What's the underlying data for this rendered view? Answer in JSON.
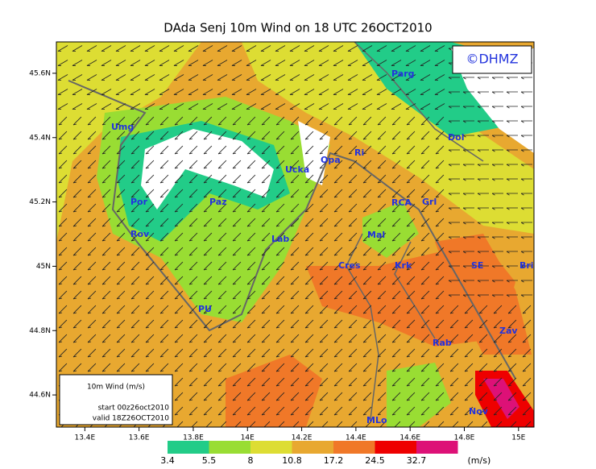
{
  "title": "DAda Senj 10m Wind on 18 UTC 26OCT2010",
  "copyright": "©DHMZ",
  "info": {
    "title": "10m Wind (m/s)",
    "start": "start 00z26oct2010",
    "valid": "valid 18Z26OCT2010"
  },
  "xlim": [
    13.295,
    15.057
  ],
  "ylim": [
    44.5,
    45.6975
  ],
  "xticks": [
    {
      "value": 13.4,
      "label": "13.4E"
    },
    {
      "value": 13.6,
      "label": "13.6E"
    },
    {
      "value": 13.8,
      "label": "13.8E"
    },
    {
      "value": 14,
      "label": "14E"
    },
    {
      "value": 14.2,
      "label": "14.2E"
    },
    {
      "value": 14.4,
      "label": "14.4E"
    },
    {
      "value": 14.6,
      "label": "14.6E"
    },
    {
      "value": 14.8,
      "label": "14.8E"
    },
    {
      "value": 15,
      "label": "15E"
    }
  ],
  "yticks": [
    {
      "value": 45.6,
      "label": "45.6N"
    },
    {
      "value": 45.4,
      "label": "45.4N"
    },
    {
      "value": 45.2,
      "label": "45.2N"
    },
    {
      "value": 45,
      "label": "45N"
    },
    {
      "value": 44.8,
      "label": "44.8N"
    },
    {
      "value": 44.6,
      "label": "44.6N"
    }
  ],
  "legend": {
    "unit": "(m/s)",
    "levels": [
      {
        "value": 3.4,
        "color": "#22cc88"
      },
      {
        "value": 5.5,
        "color": "#99dd33"
      },
      {
        "value": 8,
        "color": "#dddd33"
      },
      {
        "value": 10.8,
        "color": "#e8a830"
      },
      {
        "value": 17.2,
        "color": "#f07828"
      },
      {
        "value": 24.5,
        "color": "#ee0000"
      },
      {
        "value": 32.7,
        "color": "#dd1177"
      }
    ]
  },
  "places": [
    "Parg",
    "Umg",
    "Dol",
    "Ri",
    "Opa",
    "Ucka",
    "Por",
    "Paz",
    "RCA",
    "Grl",
    "Rov",
    "Lab",
    "Mal",
    "Cres",
    "Krk",
    "SE",
    "Bri",
    "PU",
    "Zav",
    "Rab",
    "Nov",
    "MLo"
  ]
}
